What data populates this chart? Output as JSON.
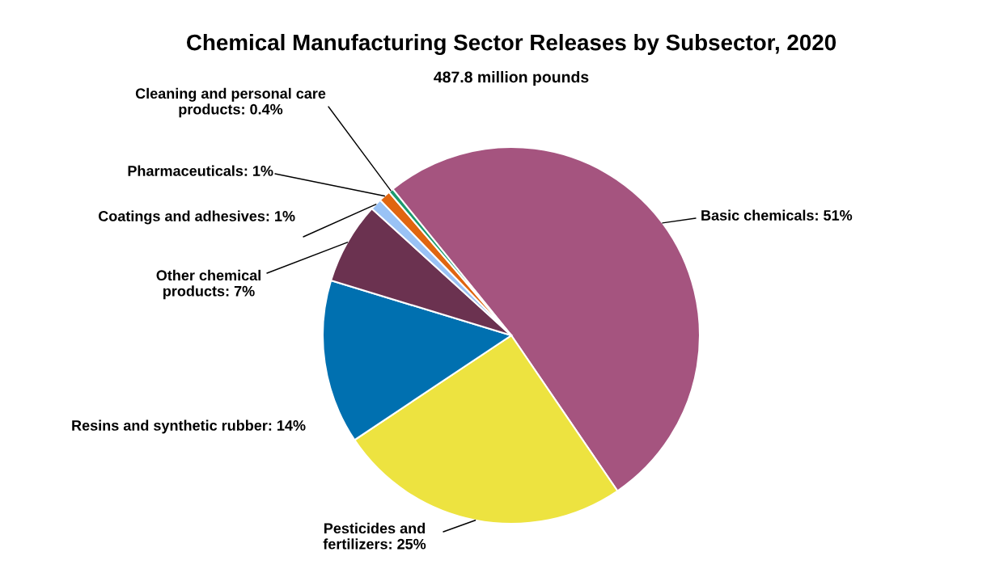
{
  "chart_data": {
    "type": "pie",
    "title": "Chemical Manufacturing Sector Releases by Subsector, 2020",
    "subtitle": "487.8 million pounds",
    "categories": [
      "Basic chemicals",
      "Pesticides and\nfertilizers",
      "Resins and synthetic rubber",
      "Other chemical\nproducts",
      "Coatings and adhesives",
      "Pharmaceuticals",
      "Cleaning and personal care\nproducts"
    ],
    "values": [
      51,
      25,
      14,
      7,
      1,
      1,
      0.4
    ],
    "value_labels": [
      "51%",
      "25%",
      "14%",
      "7%",
      "1%",
      "1%",
      "0.4%"
    ],
    "colors": [
      "#a5547f",
      "#ede340",
      "#0070b0",
      "#6b3250",
      "#99c2f5",
      "#e0650f",
      "#1a9a6e"
    ]
  }
}
